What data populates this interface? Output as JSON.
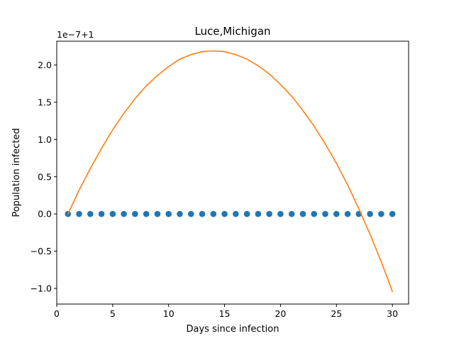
{
  "chart_data": {
    "type": "scatter",
    "title": "Luce,Michigan",
    "xlabel": "Days since infection",
    "ylabel": "Population infected",
    "offset_text": "1e−7+1",
    "xlim": [
      0.0,
      31.45
    ],
    "ylim": [
      -1.21,
      2.32
    ],
    "xticks": [
      0,
      5,
      10,
      15,
      20,
      25,
      30
    ],
    "xtick_labels": [
      "0",
      "5",
      "10",
      "15",
      "20",
      "25",
      "30"
    ],
    "yticks": [
      -1.0,
      -0.5,
      0.0,
      0.5,
      1.0,
      1.5,
      2.0
    ],
    "ytick_labels": [
      "−1.0",
      "−0.5",
      "0.0",
      "0.5",
      "1.0",
      "1.5",
      "2.0"
    ],
    "grid": false,
    "series": [
      {
        "kind": "scatter",
        "color": "#1f77b4",
        "x": [
          1,
          2,
          3,
          4,
          5,
          6,
          7,
          8,
          9,
          10,
          11,
          12,
          13,
          14,
          15,
          16,
          17,
          18,
          19,
          20,
          21,
          22,
          23,
          24,
          25,
          26,
          27,
          28,
          29,
          30
        ],
        "y": [
          0,
          0,
          0,
          0,
          0,
          0,
          0,
          0,
          0,
          0,
          0,
          0,
          0,
          0,
          0,
          0,
          0,
          0,
          0,
          0,
          0,
          0,
          0,
          0,
          0,
          0,
          0,
          0,
          0,
          0
        ]
      },
      {
        "kind": "line",
        "color": "#ff7f0e",
        "x": [
          1,
          2,
          3,
          4,
          5,
          6,
          7,
          8,
          9,
          10,
          11,
          12,
          13,
          14,
          15,
          16,
          17,
          18,
          19,
          20,
          21,
          22,
          23,
          24,
          25,
          26,
          27,
          28,
          29,
          30
        ],
        "y": [
          0.0,
          0.32,
          0.61,
          0.88,
          1.13,
          1.35,
          1.55,
          1.72,
          1.86,
          1.98,
          2.08,
          2.14,
          2.18,
          2.19,
          2.18,
          2.14,
          2.08,
          1.99,
          1.88,
          1.74,
          1.58,
          1.39,
          1.18,
          0.94,
          0.68,
          0.39,
          0.07,
          -0.27,
          -0.64,
          -1.04
        ]
      }
    ]
  }
}
